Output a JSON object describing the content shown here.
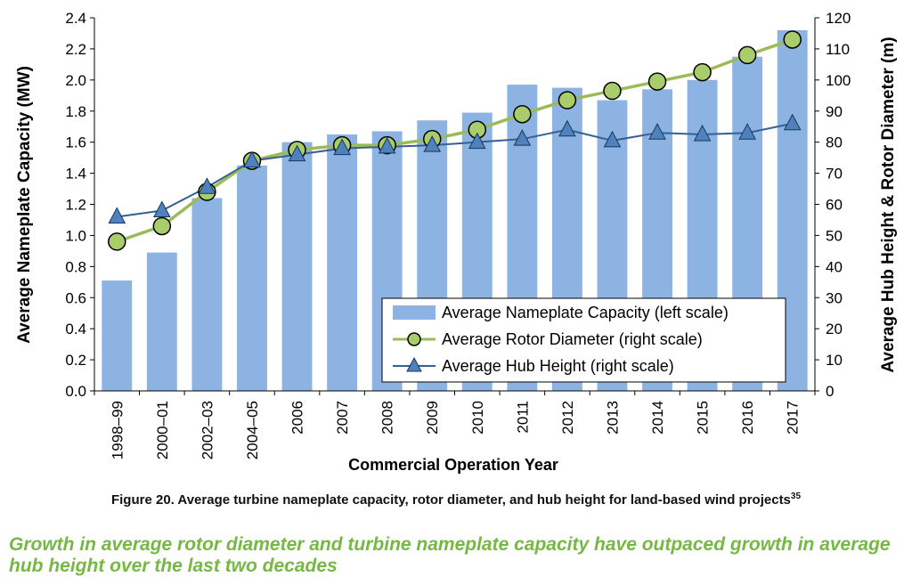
{
  "chart_data": {
    "type": "bar",
    "categories": [
      "1998–99",
      "2000–01",
      "2002–03",
      "2004–05",
      "2006",
      "2007",
      "2008",
      "2009",
      "2010",
      "2011",
      "2012",
      "2013",
      "2014",
      "2015",
      "2016",
      "2017"
    ],
    "series": [
      {
        "name": "Average Nameplate Capacity (left scale)",
        "kind": "bar",
        "axis": "left",
        "values": [
          0.71,
          0.89,
          1.24,
          1.45,
          1.6,
          1.65,
          1.67,
          1.74,
          1.79,
          1.97,
          1.95,
          1.87,
          1.94,
          2.0,
          2.15,
          2.32
        ]
      },
      {
        "name": "Average Rotor Diameter (right scale)",
        "kind": "line",
        "axis": "right",
        "values": [
          48,
          53,
          64,
          74,
          77.5,
          79,
          79,
          81,
          84,
          89,
          93.5,
          96.5,
          99.5,
          102.5,
          108,
          113
        ]
      },
      {
        "name": "Average Hub Height (right scale)",
        "kind": "line",
        "axis": "right",
        "values": [
          56,
          58,
          65.5,
          74,
          76,
          78,
          78.5,
          79,
          80,
          81,
          84,
          80.5,
          83,
          82.5,
          83,
          86
        ]
      }
    ],
    "xlabel": "Commercial Operation Year",
    "ylabel": "Average Nameplate Capacity (MW)",
    "y2label": "Average Hub Height & Rotor Diameter (m)",
    "ylim": [
      0,
      2.4
    ],
    "y2lim": [
      0,
      120
    ],
    "yticks": [
      "0.0",
      "0.2",
      "0.4",
      "0.6",
      "0.8",
      "1.0",
      "1.2",
      "1.4",
      "1.6",
      "1.8",
      "2.0",
      "2.2",
      "2.4"
    ],
    "y2ticks": [
      "0",
      "10",
      "20",
      "30",
      "40",
      "50",
      "60",
      "70",
      "80",
      "90",
      "100",
      "110",
      "120"
    ],
    "grid": false,
    "legend_position": "bottom-right",
    "colors": {
      "bar": "#8db3e2",
      "rotor": "#9bbb59",
      "rotor_marker": "#a9cd6b",
      "hub": "#366092",
      "hub_marker": "#4f81bd"
    }
  },
  "caption": {
    "text": "Figure 20. Average turbine nameplate capacity, rotor diameter, and hub height for land-based wind projects",
    "footnote": "35"
  },
  "subtitle": "Growth in average rotor diameter and turbine nameplate capacity have outpaced growth in average hub height over the last two decades"
}
